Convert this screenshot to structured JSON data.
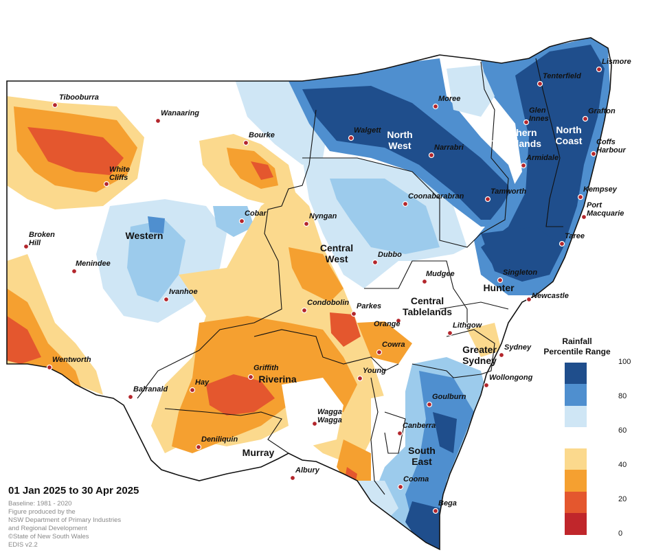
{
  "map": {
    "period": "01 Jan 2025 to 30 Apr 2025",
    "notes": [
      "Baseline: 1981 - 2020",
      "Figure produced by the",
      "NSW Department of Primary Industries",
      "and Regional Development",
      "©State of New South Wales",
      "EDIS v2.2"
    ],
    "regions": [
      {
        "label": [
          "North",
          "West"
        ],
        "color": "light"
      },
      {
        "label": [
          "Northern",
          "Tablelands"
        ],
        "color": "light"
      },
      {
        "label": [
          "North",
          "Coast"
        ],
        "color": "light"
      },
      {
        "label": [
          "Western"
        ],
        "color": "dark"
      },
      {
        "label": [
          "Central",
          "West"
        ],
        "color": "dark"
      },
      {
        "label": [
          "Central",
          "Tablelands"
        ],
        "color": "dark"
      },
      {
        "label": [
          "Hunter"
        ],
        "color": "dark"
      },
      {
        "label": [
          "Greater",
          "Sydney"
        ],
        "color": "dark"
      },
      {
        "label": [
          "Riverina"
        ],
        "color": "dark"
      },
      {
        "label": [
          "Murray"
        ],
        "color": "dark"
      },
      {
        "label": [
          "South",
          "East"
        ],
        "color": "dark"
      }
    ],
    "towns": [
      {
        "name": [
          "Tibooburra"
        ]
      },
      {
        "name": [
          "Wanaaring"
        ]
      },
      {
        "name": [
          "Bourke"
        ]
      },
      {
        "name": [
          "White",
          "Cliffs"
        ]
      },
      {
        "name": [
          "Broken",
          "Hill"
        ]
      },
      {
        "name": [
          "Menindee"
        ]
      },
      {
        "name": [
          "Cobar"
        ]
      },
      {
        "name": [
          "Nyngan"
        ]
      },
      {
        "name": [
          "Ivanhoe"
        ]
      },
      {
        "name": [
          "Wentworth"
        ]
      },
      {
        "name": [
          "Balranald"
        ]
      },
      {
        "name": [
          "Hay"
        ]
      },
      {
        "name": [
          "Griffith"
        ]
      },
      {
        "name": [
          "Deniliquin"
        ]
      },
      {
        "name": [
          "Albury"
        ]
      },
      {
        "name": [
          "Wagga",
          "Wagga"
        ]
      },
      {
        "name": [
          "Young"
        ]
      },
      {
        "name": [
          "Cowra"
        ]
      },
      {
        "name": [
          "Orange"
        ]
      },
      {
        "name": [
          "Parkes"
        ]
      },
      {
        "name": [
          "Condobolin"
        ]
      },
      {
        "name": [
          "Dubbo"
        ]
      },
      {
        "name": [
          "Mudgee"
        ]
      },
      {
        "name": [
          "Lithgow"
        ]
      },
      {
        "name": [
          "Sydney"
        ]
      },
      {
        "name": [
          "Wollongong"
        ]
      },
      {
        "name": [
          "Goulburn"
        ]
      },
      {
        "name": [
          "Canberra"
        ]
      },
      {
        "name": [
          "Cooma"
        ]
      },
      {
        "name": [
          "Bega"
        ]
      },
      {
        "name": [
          "Newcastle"
        ]
      },
      {
        "name": [
          "Singleton"
        ]
      },
      {
        "name": [
          "Taree"
        ]
      },
      {
        "name": [
          "Port",
          "Macquarie"
        ]
      },
      {
        "name": [
          "Kempsey"
        ]
      },
      {
        "name": [
          "Coffs",
          "Harbour"
        ]
      },
      {
        "name": [
          "Grafton"
        ]
      },
      {
        "name": [
          "Lismore"
        ]
      },
      {
        "name": [
          "Tenterfield"
        ]
      },
      {
        "name": [
          "Glen",
          "Innes"
        ]
      },
      {
        "name": [
          "Armidale"
        ]
      },
      {
        "name": [
          "Tamworth"
        ]
      },
      {
        "name": [
          "Narrabri"
        ]
      },
      {
        "name": [
          "Moree"
        ]
      },
      {
        "name": [
          "Walgett"
        ]
      },
      {
        "name": [
          "Coonabarabran"
        ]
      }
    ]
  },
  "legend": {
    "title": [
      "Rainfall",
      "Percentile Range"
    ],
    "ticks": [
      "100",
      "80",
      "60",
      "40",
      "20",
      "0"
    ],
    "classes": [
      {
        "from": 80,
        "to": 100,
        "color": "#1f4e8c"
      },
      {
        "from": 60,
        "to": 80,
        "color": "#4f8fcf"
      },
      {
        "from": 40,
        "to": 60,
        "color": "#cfe6f5"
      },
      {
        "from": 40,
        "to": 60,
        "color": "#ffffff"
      },
      {
        "from": 20,
        "to": 40,
        "color": "#fbd98d"
      },
      {
        "from": 20,
        "to": 40,
        "color": "#f5a030"
      },
      {
        "from": 0,
        "to": 20,
        "color": "#e4572e"
      },
      {
        "from": 0,
        "to": 20,
        "color": "#c0262b"
      }
    ]
  }
}
